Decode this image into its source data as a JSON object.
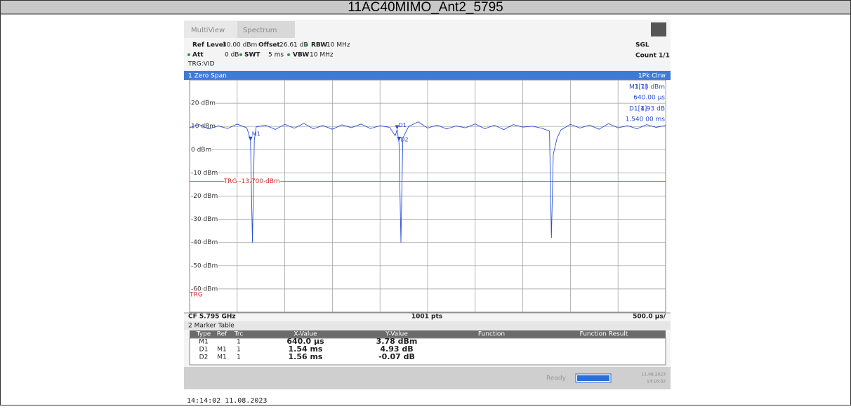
{
  "title": "11AC40MIMO_Ant2_5795",
  "tabs": [
    "MultiView",
    "Spectrum"
  ],
  "settings": {
    "ref_level_label": "Ref Level",
    "ref_level": "30.00 dBm",
    "offset_label": "Offset",
    "offset": "26.61 dB",
    "rbw_label": "RBW",
    "rbw": "10 MHz",
    "att_label": "Att",
    "att": "0 dB",
    "swt_label": "SWT",
    "swt": "5 ms",
    "vbw_label": "VBW",
    "vbw": "10 MHz",
    "trg_mode": "TRG:VID",
    "sweep": "SGL",
    "count": "Count 1/1"
  },
  "window_title": "1 Zero Span",
  "trace_mode": "1Pk Clrw",
  "marker_info": [
    {
      "name": "M1[1]",
      "value": "3.78 dBm",
      "pos": "640.00 µs"
    },
    {
      "name": "D1[1]",
      "value": "4.93 dB",
      "pos": "1.540 00 ms"
    }
  ],
  "chart_data": {
    "type": "line",
    "xlim": [
      0,
      5000
    ],
    "xticks": [
      0,
      500,
      1000,
      1500,
      2000,
      2500,
      3000,
      3500,
      4000,
      4500,
      5000
    ],
    "ylim": [
      -70,
      30
    ],
    "yticks": [
      30,
      {
        "value": 20,
        "label": "20 dBm"
      },
      {
        "value": 10,
        "label": "10 dBm"
      },
      {
        "value": 0,
        "label": "0 dBm"
      },
      {
        "value": -10,
        "label": "-10 dBm"
      },
      {
        "value": -20,
        "label": "-20 dBm"
      },
      {
        "value": -30,
        "label": "-30 dBm"
      },
      {
        "value": -40,
        "label": "-40 dBm"
      },
      {
        "value": -50,
        "label": "-50 dBm"
      },
      {
        "value": -60,
        "label": "-60 dBm"
      },
      -70
    ],
    "grid": true,
    "x": [
      0,
      100,
      200,
      300,
      400,
      500,
      600,
      620,
      640,
      660,
      680,
      700,
      800,
      900,
      1000,
      1100,
      1200,
      1300,
      1400,
      1500,
      1600,
      1700,
      1800,
      1900,
      2000,
      2100,
      2160,
      2180,
      2200,
      2220,
      2240,
      2300,
      2400,
      2500,
      2600,
      2700,
      2800,
      2900,
      3000,
      3100,
      3200,
      3300,
      3400,
      3500,
      3600,
      3700,
      3780,
      3800,
      3820,
      3860,
      3900,
      4000,
      4100,
      4200,
      4300,
      4400,
      4500,
      4600,
      4700,
      4800,
      4900,
      5000
    ],
    "series": [
      {
        "name": "1Pk Clrw",
        "color": "#2a4fd6",
        "values": [
          9.5,
          10.8,
          8.9,
          10.2,
          9.1,
          11,
          9.4,
          7,
          3.78,
          -40,
          4,
          9.8,
          10.5,
          8.7,
          10.9,
          9.2,
          11.3,
          9,
          10.4,
          8.8,
          10.7,
          9.5,
          11,
          9.1,
          10.3,
          9.6,
          6,
          8.71,
          3,
          -40,
          5,
          9.9,
          12,
          9.3,
          10.6,
          8.9,
          10.2,
          9.4,
          11.1,
          9,
          10.5,
          8.6,
          10.8,
          9.7,
          10.1,
          9.2,
          8,
          -38,
          -2,
          5,
          8.5,
          10.9,
          9.3,
          10.6,
          8.8,
          11.2,
          9.4,
          10.3,
          9,
          10.8,
          9.6,
          10.4
        ]
      }
    ],
    "trigger": {
      "value": -13.7,
      "label": "TRG -13.700 dBm",
      "color": "#d03030",
      "marker": "TRG"
    },
    "markers": [
      {
        "name": "M1",
        "x": 640,
        "y": 3.78
      },
      {
        "name": "D1",
        "x": 1540,
        "y": 4.93
      },
      {
        "name": "D2",
        "x": 1560,
        "y": -0.07
      }
    ],
    "footer": {
      "left": "CF 5.795 GHz",
      "center": "1001 pts",
      "right": "500.0 µs/"
    }
  },
  "marker_table": {
    "title": "2 Marker Table",
    "headers": [
      "Type",
      "Ref",
      "Trc",
      "X-Value",
      "Y-Value",
      "Function",
      "Function Result"
    ],
    "rows": [
      [
        "M1",
        "",
        "1",
        "640.0 µs",
        "3.78 dBm"
      ],
      [
        "D1",
        "M1",
        "1",
        "1.54 ms",
        "4.93 dB"
      ],
      [
        "D2",
        "M1",
        "1",
        "1.56 ms",
        "-0.07 dB"
      ]
    ]
  },
  "status": {
    "state": "Ready",
    "date": "11.08.2023",
    "time": "14:16:02"
  },
  "timestamp": "14:14:02  11.08.2023"
}
